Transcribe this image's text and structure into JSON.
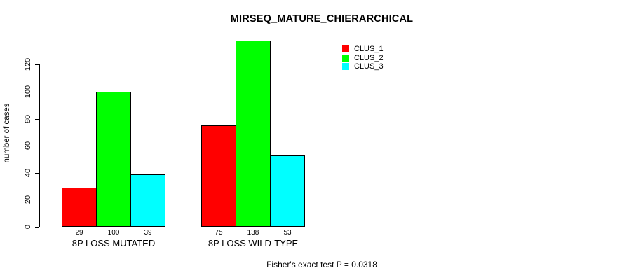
{
  "chart_data": {
    "type": "bar",
    "title": "MIRSEQ_MATURE_CHIERARCHICAL",
    "ylabel": "number of cases",
    "xlabel": "",
    "categories": [
      "8P LOSS MUTATED",
      "8P LOSS WILD-TYPE"
    ],
    "series": [
      {
        "name": "CLUS_1",
        "color": "#ff0000",
        "values": [
          29,
          75
        ]
      },
      {
        "name": "CLUS_2",
        "color": "#00ff00",
        "values": [
          100,
          138
        ]
      },
      {
        "name": "CLUS_3",
        "color": "#00ffff",
        "values": [
          39,
          53
        ]
      }
    ],
    "yticks": [
      0,
      20,
      40,
      60,
      80,
      100,
      120
    ],
    "ylim": [
      0,
      138
    ],
    "grid": false,
    "bar_value_labels_shown": true,
    "legend_position": "top-right",
    "legend_entries": [
      "CLUS_1",
      "CLUS_2",
      "CLUS_3"
    ],
    "annotation": "Fisher's exact test P = 0.0318"
  }
}
